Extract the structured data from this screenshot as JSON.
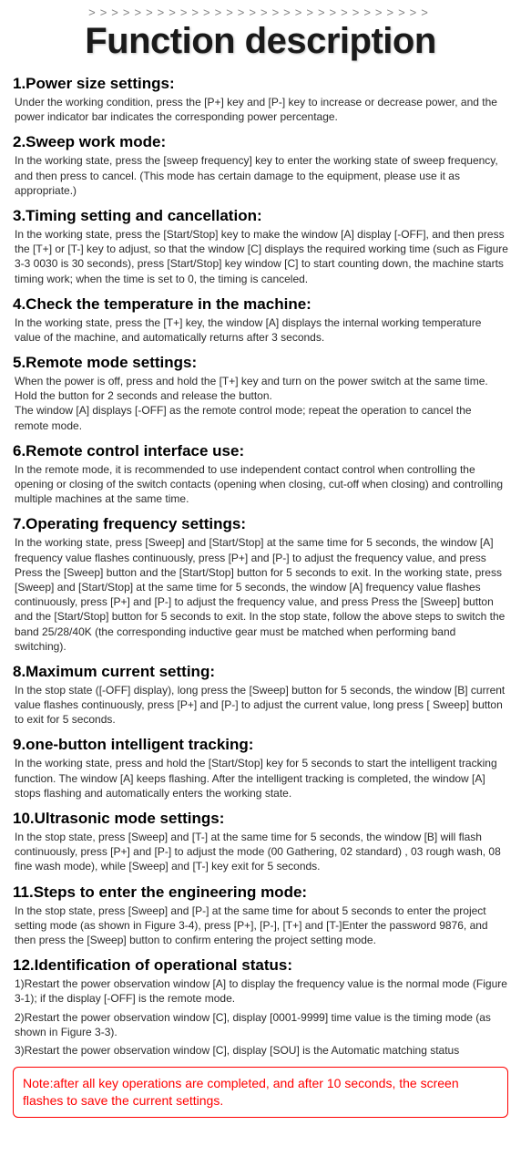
{
  "chevrons": ">>>>>>>>>>>>>>>>>>>>>>>>>>>>>>",
  "title": "Function description",
  "sections": [
    {
      "heading": "1.Power size settings:",
      "body": "Under the working condition, press the [P+] key and [P-] key to increase or decrease power, and the power indicator bar indicates the corresponding power percentage."
    },
    {
      "heading": "2.Sweep work mode:",
      "body": "In the working state, press the [sweep frequency] key to enter the working state of sweep frequency, and then press to cancel. (This mode has certain damage to the equipment, please use it as appropriate.)"
    },
    {
      "heading": "3.Timing setting and cancellation:",
      "body": "In the working state, press the [Start/Stop] key to make the window [A] display [-OFF], and then press the [T+] or [T-] key to adjust, so that the window [C] displays the required working time (such as Figure 3-3 0030 is 30 seconds), press [Start/Stop] key window [C] to start counting down, the machine starts timing work; when the time is set to 0, the timing is canceled."
    },
    {
      "heading": "4.Check the temperature in the machine:",
      "body": "In the working state, press the [T+] key, the window [A] displays the internal working temperature value of the machine, and automatically returns after 3 seconds."
    },
    {
      "heading": "5.Remote mode settings:",
      "body": "When the power is off, press and hold the [T+] key and turn on the power switch at the same time. Hold the button for 2 seconds and release the button.\nThe window [A] displays [-OFF] as the remote control mode; repeat the operation to cancel the remote mode."
    },
    {
      "heading": "6.Remote control interface use:",
      "body": "In the remote mode, it is recommended to use independent contact control when controlling the opening or closing of the switch contacts (opening when closing, cut-off when closing) and controlling multiple machines at the same time."
    },
    {
      "heading": "7.Operating frequency settings:",
      "body": "In the working state, press [Sweep] and [Start/Stop] at the same time for 5 seconds, the window [A] frequency value flashes continuously, press [P+] and [P-] to adjust the frequency value, and press Press the [Sweep] button and the [Start/Stop] button for 5 seconds to exit. In the working state, press [Sweep] and [Start/Stop] at the same time for 5 seconds, the window [A] frequency value flashes continuously, press [P+] and [P-] to adjust the frequency value, and press Press the [Sweep] button and the [Start/Stop] button for 5 seconds to exit. In the stop state, follow the above steps to switch the band 25/28/40K (the corresponding inductive gear must be matched when performing band switching)."
    },
    {
      "heading": "8.Maximum current setting:",
      "body": "In the stop state ([-OFF] display), long press the [Sweep] button for 5 seconds, the window [B] current value flashes continuously, press [P+] and [P-] to adjust the current value, long press [ Sweep] button to exit for 5 seconds."
    },
    {
      "heading": "9.one-button intelligent tracking:",
      "body": "In the working state, press and hold the [Start/Stop] key for 5 seconds to start the intelligent tracking function. The window [A] keeps flashing. After the intelligent tracking is completed, the window [A] stops flashing and automatically enters the working state."
    },
    {
      "heading": "10.Ultrasonic mode settings:",
      "body": "In the stop state, press [Sweep] and [T-] at the same time for 5 seconds, the window [B] will flash continuously, press [P+] and [P-] to adjust the mode (00 Gathering, 02 standard) , 03 rough wash, 08 fine wash mode), while [Sweep] and [T-] key exit for 5 seconds."
    },
    {
      "heading": "11.Steps to enter the engineering mode:",
      "body": "In the stop state, press [Sweep] and [P-] at the same time for about 5 seconds to enter the project setting mode (as shown in Figure 3-4), press [P+], [P-], [T+] and [T-]Enter the password 9876, and then press the [Sweep] button to confirm entering the project setting mode."
    },
    {
      "heading": "12.Identification of operational status:",
      "subs": [
        "1)Restart the power observation window [A] to display the frequency value is the normal mode (Figure 3-1); if the display [-OFF] is the remote mode.",
        "2)Restart the power observation window [C], display [0001-9999] time value is the timing mode (as shown in Figure 3-3).",
        "3)Restart the power observation window [C], display [SOU] is the Automatic matching status"
      ]
    }
  ],
  "note": "Note:after all key operations are completed, and after 10 seconds, the screen flashes to save the current settings.",
  "colors": {
    "note_border": "#ff0000",
    "note_text": "#ff0000",
    "bg": "#ffffff",
    "text": "#000000"
  }
}
